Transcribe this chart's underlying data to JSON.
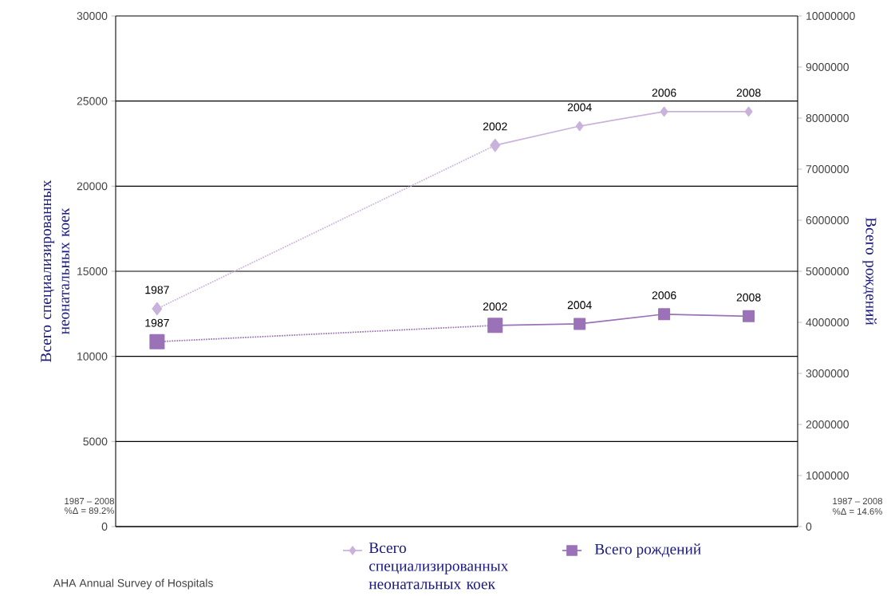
{
  "chart_data": {
    "type": "line",
    "ylabel": "Всего специализированных неонатальных коек",
    "y2label": "Всего рождений",
    "categories": [
      null,
      null,
      null,
      null,
      null,
      null,
      null,
      null
    ],
    "series": [
      {
        "color": "#c9b3dc",
        "marker": "diamond",
        "line_style": "dotted",
        "values": [
          12800,
          null,
          null,
          null,
          22400,
          null,
          null,
          null
        ]
      },
      {
        "name": "Всего специализированных неонатальных коек",
        "color": "#c9b3dc",
        "marker": "diamond",
        "line_style": "solid",
        "values": [
          null,
          null,
          null,
          null,
          22400,
          23530,
          24380,
          24380
        ]
      },
      {
        "color": "#9b72b8",
        "marker": "square",
        "line_style": "dotted",
        "axis": "y2",
        "values": [
          3620000,
          null,
          null,
          null,
          3940000,
          null,
          null,
          null
        ]
      },
      {
        "name": "Всего рождений",
        "color": "#9b72b8",
        "marker": "square",
        "line_style": "solid",
        "axis": "y2",
        "values": [
          null,
          null,
          null,
          null,
          3940000,
          3970000,
          4160000,
          4120000
        ]
      }
    ],
    "ylim": [
      0,
      30000
    ],
    "yticks": [
      0,
      5000,
      10000,
      15000,
      20000,
      25000,
      30000
    ],
    "y2lim": [
      0,
      10000000
    ],
    "y2ticks": [
      0,
      1000000,
      2000000,
      3000000,
      4000000,
      5000000,
      6000000,
      7000000,
      8000000,
      9000000,
      10000000
    ],
    "grid": "y",
    "legend": "bottom",
    "annotations": [
      "1987 – 2008",
      "%Δ = 89.2%",
      "1987 – 2008",
      "%Δ = 14.6%",
      "AHA Annual Survey of Hospitals",
      {
        "text": "1987",
        "y": 12800
      },
      {
        "text": "2002",
        "y": 22400
      },
      {
        "text": "2004",
        "y": 23530
      },
      {
        "text": "2006",
        "y": 24380
      },
      {
        "text": "2008",
        "y": 24380
      },
      "1987",
      "2002",
      "2004",
      "2006",
      "2008"
    ]
  }
}
